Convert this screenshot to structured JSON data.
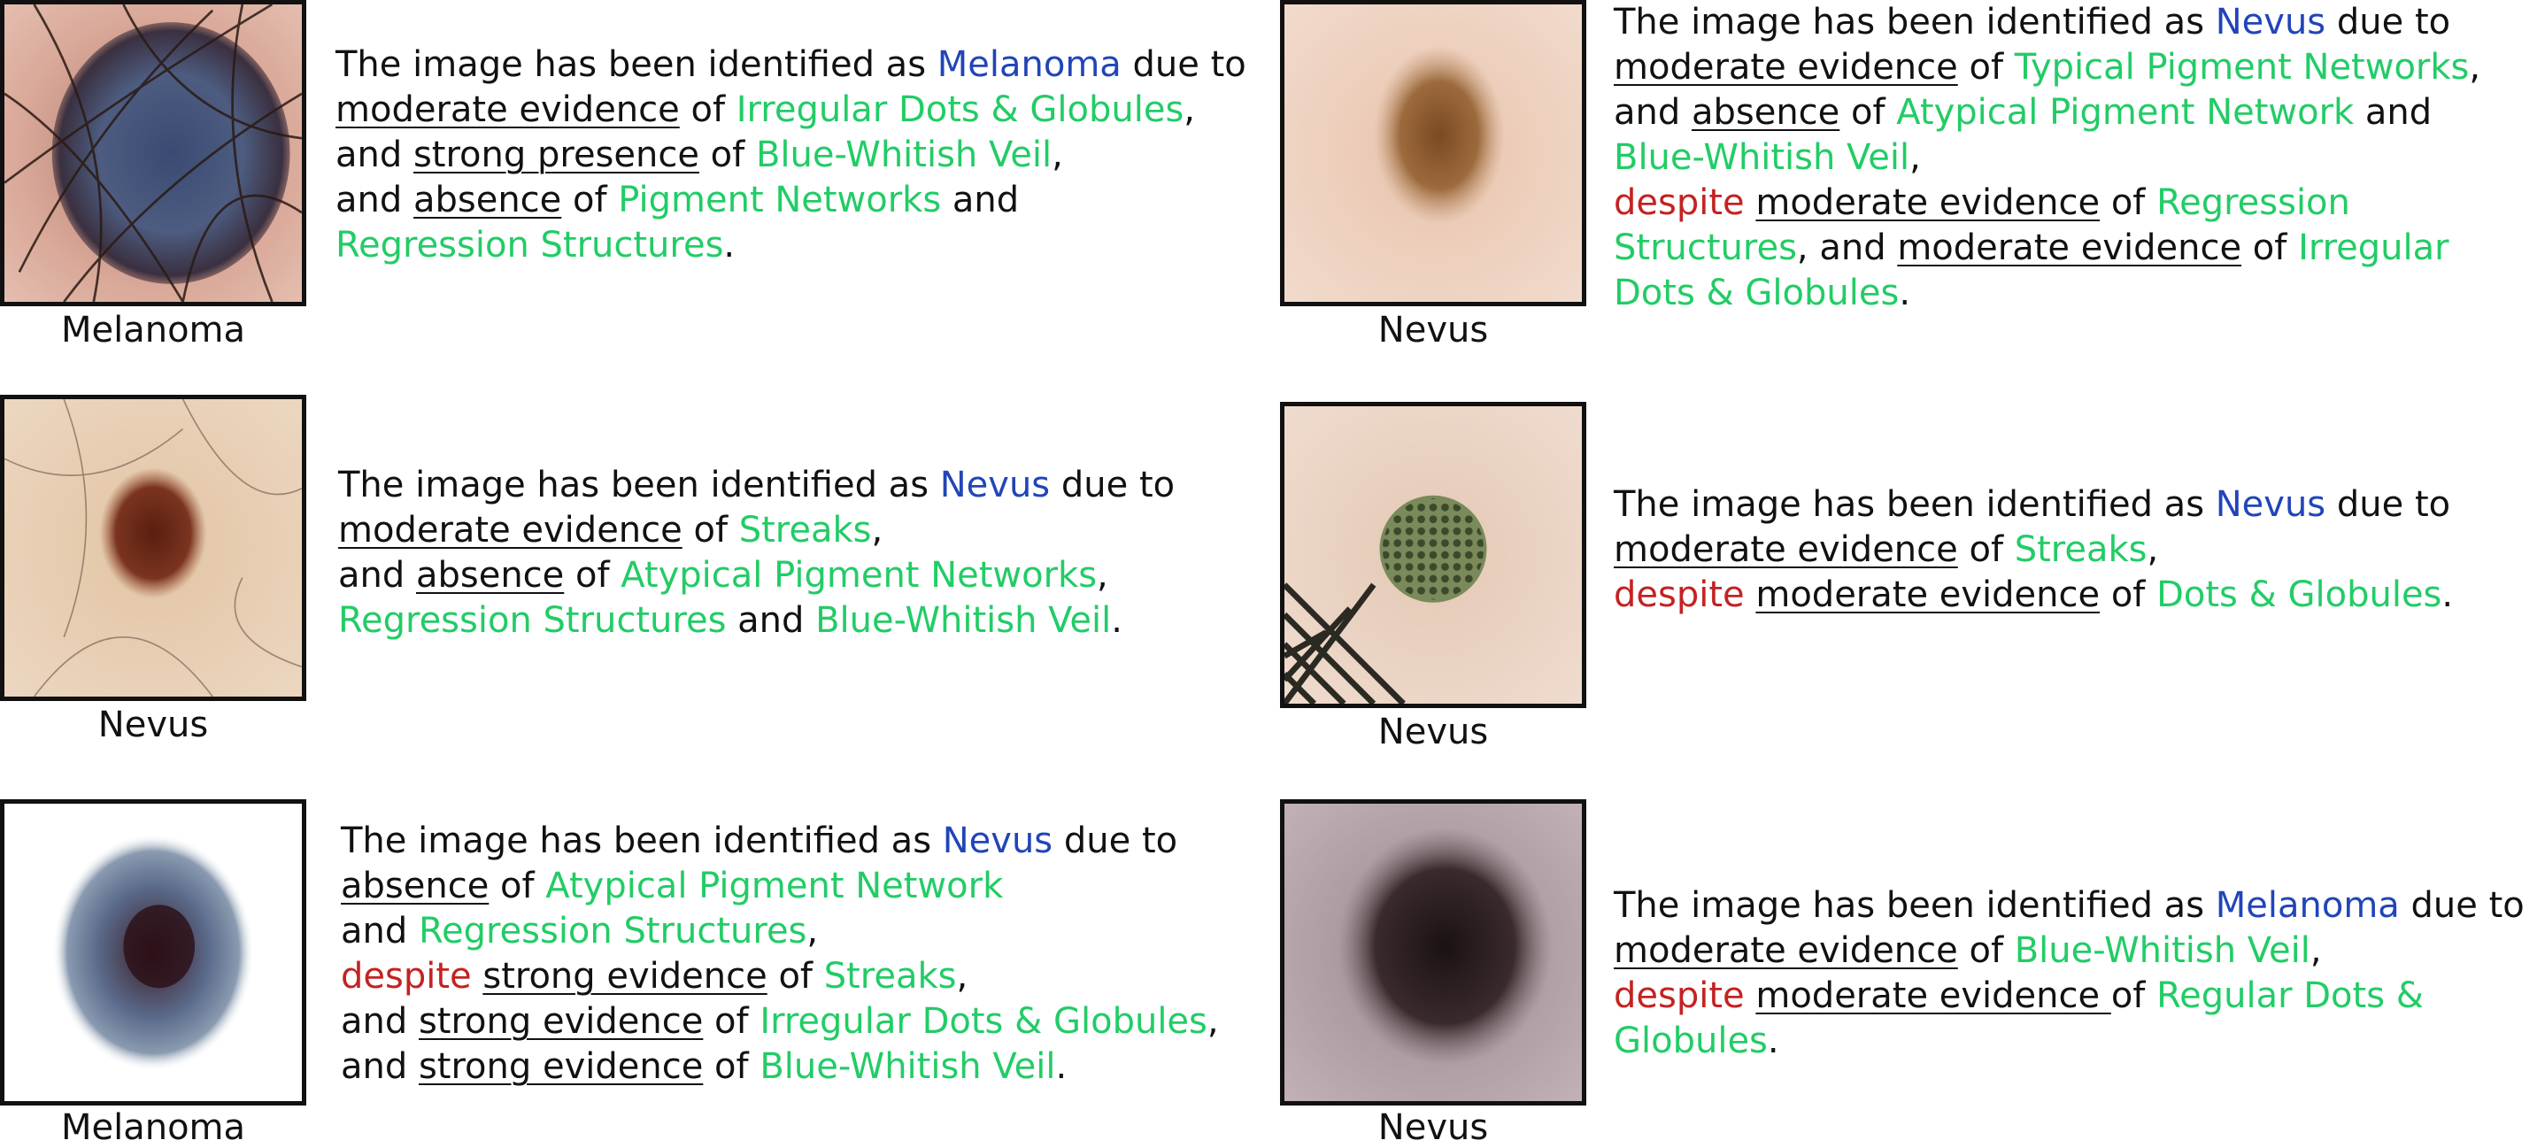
{
  "cases": [
    {
      "id": "case-1",
      "caption": "Melanoma",
      "lines": [
        [
          {
            "t": "The image has been identified as "
          },
          {
            "t": "Melanoma",
            "c": "blue"
          },
          {
            "t": " due to"
          }
        ],
        [
          {
            "t": "moderate evidence",
            "u": true
          },
          {
            "t": " of "
          },
          {
            "t": "Irregular Dots & Globules",
            "c": "green"
          },
          {
            "t": ","
          }
        ],
        [
          {
            "t": "and "
          },
          {
            "t": "strong presence",
            "u": true
          },
          {
            "t": " of "
          },
          {
            "t": "Blue-Whitish Veil",
            "c": "green"
          },
          {
            "t": ","
          }
        ],
        [
          {
            "t": "and "
          },
          {
            "t": "absence",
            "u": true
          },
          {
            "t": " of "
          },
          {
            "t": "Pigment Networks",
            "c": "green"
          },
          {
            "t": " and"
          }
        ],
        [
          {
            "t": "Regression Structures",
            "c": "green"
          },
          {
            "t": "."
          }
        ]
      ]
    },
    {
      "id": "case-2",
      "caption": "Nevus",
      "lines": [
        [
          {
            "t": "The image has been identified as "
          },
          {
            "t": "Nevus",
            "c": "blue"
          },
          {
            "t": " due to"
          }
        ],
        [
          {
            "t": "moderate evidence",
            "u": true
          },
          {
            "t": " of "
          },
          {
            "t": "Typical Pigment Networks",
            "c": "green"
          },
          {
            "t": ","
          }
        ],
        [
          {
            "t": "and "
          },
          {
            "t": "absence",
            "u": true
          },
          {
            "t": " of "
          },
          {
            "t": "Atypical Pigment Network",
            "c": "green"
          },
          {
            "t": " and"
          }
        ],
        [
          {
            "t": "Blue-Whitish Veil",
            "c": "green"
          },
          {
            "t": ","
          }
        ],
        [
          {
            "t": "despite",
            "c": "red"
          },
          {
            "t": " "
          },
          {
            "t": "moderate evidence",
            "u": true
          },
          {
            "t": " of "
          },
          {
            "t": "Regression",
            "c": "green"
          }
        ],
        [
          {
            "t": "Structures",
            "c": "green"
          },
          {
            "t": ", and "
          },
          {
            "t": "moderate evidence",
            "u": true
          },
          {
            "t": " of "
          },
          {
            "t": "Irregular",
            "c": "green"
          }
        ],
        [
          {
            "t": "Dots & Globules",
            "c": "green"
          },
          {
            "t": "."
          }
        ]
      ]
    },
    {
      "id": "case-3",
      "caption": "Nevus",
      "lines": [
        [
          {
            "t": "The image has been identified as "
          },
          {
            "t": "Nevus",
            "c": "blue"
          },
          {
            "t": " due to"
          }
        ],
        [
          {
            "t": "moderate evidence",
            "u": true
          },
          {
            "t": " of "
          },
          {
            "t": "Streaks",
            "c": "green"
          },
          {
            "t": ","
          }
        ],
        [
          {
            "t": "and "
          },
          {
            "t": "absence",
            "u": true
          },
          {
            "t": " of "
          },
          {
            "t": "Atypical Pigment Networks",
            "c": "green"
          },
          {
            "t": ","
          }
        ],
        [
          {
            "t": "Regression Structures",
            "c": "green"
          },
          {
            "t": " and "
          },
          {
            "t": "Blue-Whitish Veil",
            "c": "green"
          },
          {
            "t": "."
          }
        ]
      ]
    },
    {
      "id": "case-4",
      "caption": "Nevus",
      "lines": [
        [
          {
            "t": "The image has been identified as "
          },
          {
            "t": "Nevus",
            "c": "blue"
          },
          {
            "t": " due to"
          }
        ],
        [
          {
            "t": "moderate evidence",
            "u": true
          },
          {
            "t": " of "
          },
          {
            "t": "Streaks",
            "c": "green"
          },
          {
            "t": ","
          }
        ],
        [
          {
            "t": "despite",
            "c": "red"
          },
          {
            "t": " "
          },
          {
            "t": "moderate evidence",
            "u": true
          },
          {
            "t": " of "
          },
          {
            "t": "Dots & Globules",
            "c": "green"
          },
          {
            "t": "."
          }
        ]
      ]
    },
    {
      "id": "case-5",
      "caption": "Melanoma",
      "lines": [
        [
          {
            "t": "The image has been identified as "
          },
          {
            "t": "Nevus",
            "c": "blue"
          },
          {
            "t": " due to"
          }
        ],
        [
          {
            "t": "absence",
            "u": true
          },
          {
            "t": " of "
          },
          {
            "t": "Atypical Pigment Network",
            "c": "green"
          }
        ],
        [
          {
            "t": "and "
          },
          {
            "t": "Regression Structures",
            "c": "green"
          },
          {
            "t": ","
          }
        ],
        [
          {
            "t": "despite",
            "c": "red"
          },
          {
            "t": " "
          },
          {
            "t": "strong evidence",
            "u": true
          },
          {
            "t": " of "
          },
          {
            "t": "Streaks",
            "c": "green"
          },
          {
            "t": ","
          }
        ],
        [
          {
            "t": "and "
          },
          {
            "t": "strong evidence",
            "u": true
          },
          {
            "t": " of "
          },
          {
            "t": "Irregular Dots & Globules",
            "c": "green"
          },
          {
            "t": ","
          }
        ],
        [
          {
            "t": "and "
          },
          {
            "t": "strong evidence",
            "u": true
          },
          {
            "t": " of "
          },
          {
            "t": "Blue-Whitish Veil",
            "c": "green"
          },
          {
            "t": "."
          }
        ]
      ]
    },
    {
      "id": "case-6",
      "caption": "Nevus",
      "lines": [
        [
          {
            "t": "The image has been identified as "
          },
          {
            "t": "Melanoma",
            "c": "blue"
          },
          {
            "t": " due to"
          }
        ],
        [
          {
            "t": "moderate evidence",
            "u": true
          },
          {
            "t": " of "
          },
          {
            "t": "Blue-Whitish Veil",
            "c": "green"
          },
          {
            "t": ","
          }
        ],
        [
          {
            "t": "despite",
            "c": "red"
          },
          {
            "t": " "
          },
          {
            "t": "moderate evidence ",
            "u": true
          },
          {
            "t": "of "
          },
          {
            "t": "Regular Dots &",
            "c": "green"
          }
        ],
        [
          {
            "t": "Globules",
            "c": "green"
          },
          {
            "t": "."
          }
        ]
      ]
    }
  ],
  "colors": {
    "prediction": "#2145b8",
    "feature": "#22cc66",
    "contrast": "#c42222"
  }
}
